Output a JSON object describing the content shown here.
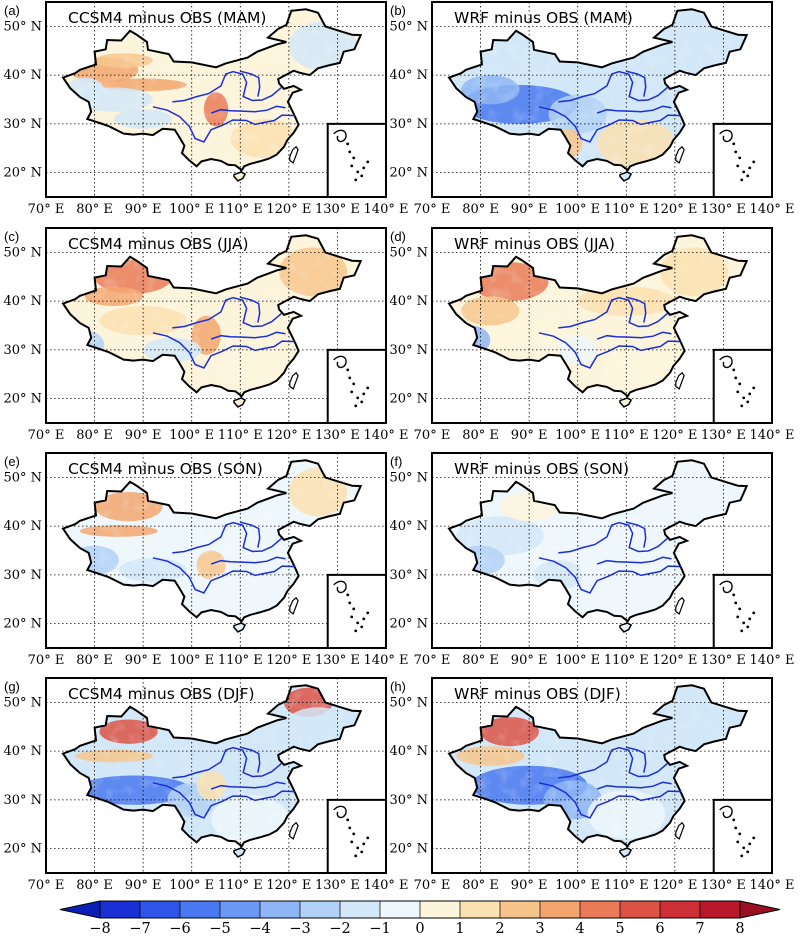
{
  "figure": {
    "panels": [
      {
        "letter": "(a)",
        "title": "CCSM4 minus OBS (MAM)",
        "model": "CCSM4",
        "season": "MAM"
      },
      {
        "letter": "(b)",
        "title": "WRF minus OBS (MAM)",
        "model": "WRF",
        "season": "MAM"
      },
      {
        "letter": "(c)",
        "title": "CCSM4 minus OBS (JJA)",
        "model": "CCSM4",
        "season": "JJA"
      },
      {
        "letter": "(d)",
        "title": "WRF minus OBS (JJA)",
        "model": "WRF",
        "season": "JJA"
      },
      {
        "letter": "(e)",
        "title": "CCSM4 minus OBS (SON)",
        "model": "CCSM4",
        "season": "SON"
      },
      {
        "letter": "(f)",
        "title": "WRF minus OBS (SON)",
        "model": "WRF",
        "season": "SON"
      },
      {
        "letter": "(g)",
        "title": "CCSM4 minus OBS (DJF)",
        "model": "CCSM4",
        "season": "DJF"
      },
      {
        "letter": "(h)",
        "title": "WRF minus OBS (DJF)",
        "model": "WRF",
        "season": "DJF"
      }
    ],
    "lon_ticks": [
      {
        "value": 70,
        "label": "70° E"
      },
      {
        "value": 80,
        "label": "80° E"
      },
      {
        "value": 90,
        "label": "90° E"
      },
      {
        "value": 100,
        "label": "100° E"
      },
      {
        "value": 110,
        "label": "110° E"
      },
      {
        "value": 120,
        "label": "120° E"
      },
      {
        "value": 130,
        "label": "130° E"
      },
      {
        "value": 140,
        "label": "140° E"
      }
    ],
    "lat_ticks": [
      {
        "value": 20,
        "label": "20° N"
      },
      {
        "value": 30,
        "label": "30° N"
      },
      {
        "value": 40,
        "label": "40° N"
      },
      {
        "value": 50,
        "label": "50° N"
      }
    ],
    "extent": {
      "lon": [
        70,
        140
      ],
      "lat": [
        15,
        55
      ]
    },
    "colorbar": {
      "ticks": [
        "−8",
        "−7",
        "−6",
        "−5",
        "−4",
        "−3",
        "−2",
        "−1",
        "0",
        "1",
        "2",
        "3",
        "4",
        "5",
        "6",
        "7",
        "8"
      ],
      "min": -8,
      "max": 8,
      "colors": [
        "#1a2fd6",
        "#2e55ea",
        "#4a78f0",
        "#6b98f2",
        "#8fb6f4",
        "#b1d1f6",
        "#d2e7f8",
        "#eef7fb",
        "#fdf4dc",
        "#fbe0b0",
        "#f7c58c",
        "#f2a66e",
        "#e97b58",
        "#dc5245",
        "#cc2f36",
        "#b8182a"
      ],
      "extend": "both",
      "orientation": "horizontal"
    },
    "colors": {
      "border": "#000000",
      "river": "#1b2fd8",
      "ocean": "#ffffff",
      "grid": "#000000"
    }
  }
}
